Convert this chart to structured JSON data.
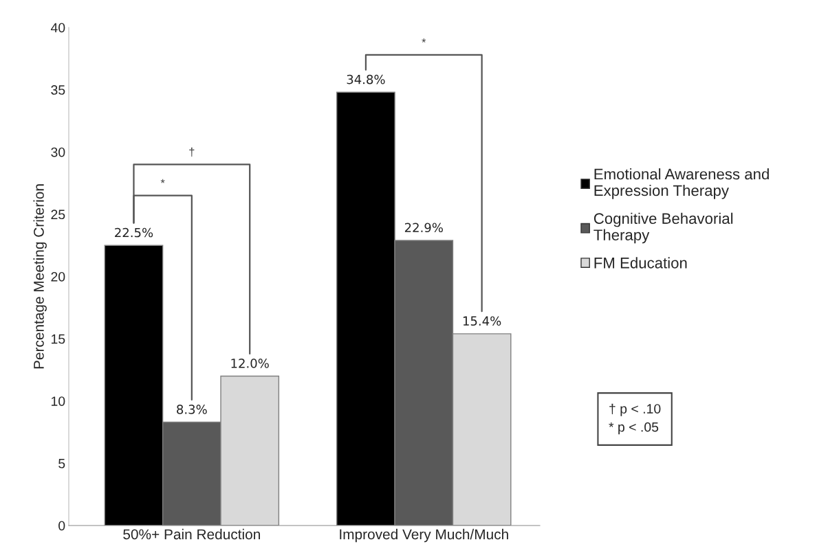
{
  "chart_data": {
    "type": "bar",
    "ylabel": "Percentage Meeting Criterion",
    "categories": [
      "50%+ Pain Reduction",
      "Improved Very Much/Much"
    ],
    "series": [
      {
        "name": "Emotional Awareness and\nExpression Therapy",
        "color": "#000000",
        "values": [
          22.5,
          34.8
        ],
        "value_labels": [
          "22.5%",
          "34.8%"
        ]
      },
      {
        "name": "Cognitive Behavorial\nTherapy",
        "color": "#595959",
        "values": [
          8.3,
          22.9
        ],
        "value_labels": [
          "8.3%",
          "22.9%"
        ]
      },
      {
        "name": "FM Education",
        "color": "#d9d9d9",
        "values": [
          12.0,
          15.4
        ],
        "value_labels": [
          "12.0%",
          "15.4%"
        ]
      }
    ],
    "ylim": [
      0,
      40
    ],
    "yticks": [
      0,
      5,
      10,
      15,
      20,
      25,
      30,
      35,
      40
    ],
    "legend": "right",
    "grid": false,
    "annotations": [
      "*",
      "†",
      "*",
      "† p < .10\n* p < .05"
    ]
  }
}
